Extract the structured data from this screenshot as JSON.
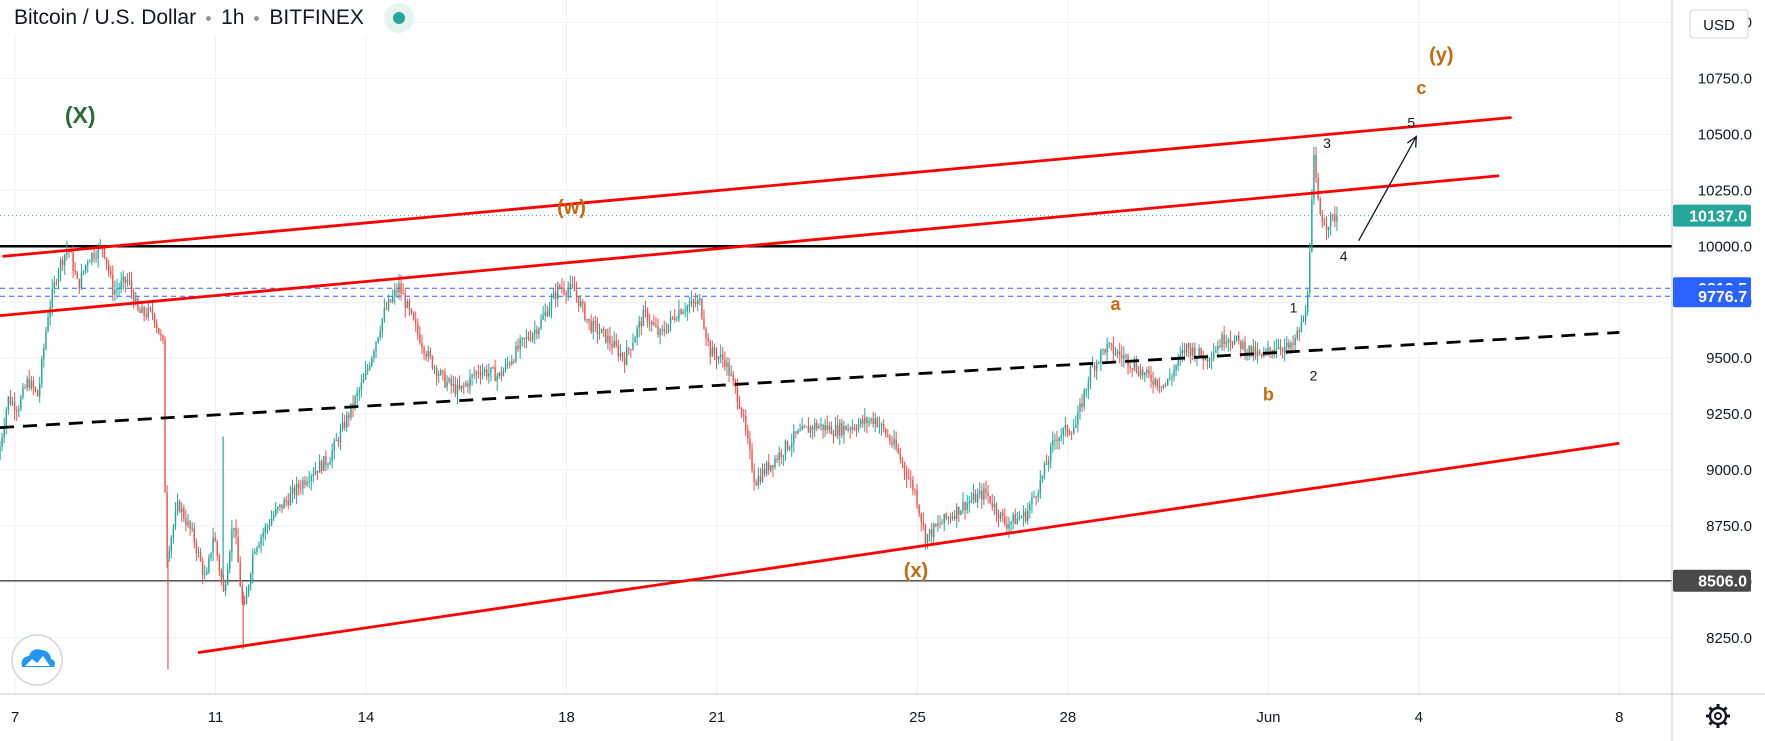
{
  "header": {
    "symbol": "Bitcoin / U.S. Dollar",
    "interval": "1h",
    "exchange": "BITFINEX",
    "status_icon": "market-status-dot-icon"
  },
  "currency_label": "USD",
  "settings_icon": "gear-icon",
  "logo_icon": "cloud-logo-icon",
  "colors": {
    "up": "#26a69a",
    "down": "#ef5350",
    "channel": "#ff0000",
    "wave_orange": "#c46a0c",
    "wave_green": "#2e6b3a",
    "blue_level": "#2962ff",
    "black_level": "#000000",
    "gray_level": "#555555"
  },
  "chart_data": {
    "type": "candlestick",
    "title": "Bitcoin / U.S. Dollar · 1h · BITFINEX",
    "ylim": [
      8000,
      11100
    ],
    "y_ticks": [
      11000,
      10750,
      10500,
      10250,
      10000,
      9750,
      9500,
      9250,
      9000,
      8750,
      8500,
      8250
    ],
    "x_ticks": [
      {
        "day": 7,
        "label": "7"
      },
      {
        "day": 11,
        "label": "11"
      },
      {
        "day": 14,
        "label": "14"
      },
      {
        "day": 18,
        "label": "18"
      },
      {
        "day": 21,
        "label": "21"
      },
      {
        "day": 25,
        "label": "25"
      },
      {
        "day": 28,
        "label": "28"
      },
      {
        "day": 32,
        "label": "Jun"
      },
      {
        "day": 35,
        "label": "4"
      },
      {
        "day": 39,
        "label": "8"
      }
    ],
    "xlim": [
      6.7,
      40.05
    ],
    "price_path": [
      [
        6.7,
        9050
      ],
      [
        6.9,
        9320
      ],
      [
        7.1,
        9280
      ],
      [
        7.3,
        9400
      ],
      [
        7.5,
        9330
      ],
      [
        7.7,
        9700
      ],
      [
        7.9,
        9900
      ],
      [
        8.1,
        10000
      ],
      [
        8.3,
        9820
      ],
      [
        8.5,
        9950
      ],
      [
        8.8,
        10000
      ],
      [
        9.0,
        9800
      ],
      [
        9.3,
        9850
      ],
      [
        9.5,
        9700
      ],
      [
        9.8,
        9700
      ],
      [
        10.0,
        9550
      ],
      [
        10.05,
        8600
      ],
      [
        10.3,
        8850
      ],
      [
        10.6,
        8700
      ],
      [
        10.85,
        8500
      ],
      [
        11.0,
        8720
      ],
      [
        11.2,
        8450
      ],
      [
        11.4,
        8780
      ],
      [
        11.6,
        8350
      ],
      [
        11.8,
        8650
      ],
      [
        12.2,
        8800
      ],
      [
        12.6,
        8900
      ],
      [
        12.9,
        8980
      ],
      [
        13.3,
        9050
      ],
      [
        13.7,
        9250
      ],
      [
        14.0,
        9400
      ],
      [
        14.4,
        9700
      ],
      [
        14.7,
        9820
      ],
      [
        15.0,
        9650
      ],
      [
        15.3,
        9500
      ],
      [
        15.6,
        9400
      ],
      [
        15.9,
        9350
      ],
      [
        16.3,
        9450
      ],
      [
        16.7,
        9420
      ],
      [
        17.1,
        9550
      ],
      [
        17.5,
        9650
      ],
      [
        17.9,
        9820
      ],
      [
        18.2,
        9800
      ],
      [
        18.5,
        9650
      ],
      [
        18.8,
        9600
      ],
      [
        19.2,
        9500
      ],
      [
        19.6,
        9700
      ],
      [
        19.9,
        9600
      ],
      [
        20.3,
        9720
      ],
      [
        20.7,
        9750
      ],
      [
        20.9,
        9530
      ],
      [
        21.2,
        9490
      ],
      [
        21.5,
        9300
      ],
      [
        21.8,
        8950
      ],
      [
        22.2,
        9050
      ],
      [
        22.6,
        9150
      ],
      [
        23.0,
        9200
      ],
      [
        23.4,
        9180
      ],
      [
        23.8,
        9200
      ],
      [
        24.2,
        9230
      ],
      [
        24.6,
        9100
      ],
      [
        25.0,
        8900
      ],
      [
        25.2,
        8700
      ],
      [
        25.6,
        8780
      ],
      [
        26.0,
        8850
      ],
      [
        26.4,
        8900
      ],
      [
        26.8,
        8760
      ],
      [
        27.2,
        8800
      ],
      [
        27.5,
        8950
      ],
      [
        27.8,
        9150
      ],
      [
        28.2,
        9200
      ],
      [
        28.5,
        9450
      ],
      [
        28.8,
        9550
      ],
      [
        29.2,
        9500
      ],
      [
        29.6,
        9420
      ],
      [
        30.0,
        9380
      ],
      [
        30.4,
        9550
      ],
      [
        30.8,
        9500
      ],
      [
        31.2,
        9600
      ],
      [
        31.5,
        9560
      ],
      [
        31.9,
        9500
      ],
      [
        32.2,
        9560
      ],
      [
        32.5,
        9540
      ],
      [
        32.8,
        9700
      ],
      [
        32.95,
        10380
      ],
      [
        33.05,
        10150
      ],
      [
        33.2,
        10100
      ],
      [
        33.4,
        10137
      ]
    ],
    "wicks": [
      {
        "day": 10.05,
        "low": 8110
      },
      {
        "day": 11.15,
        "high": 9150
      },
      {
        "day": 11.55,
        "low": 8200
      },
      {
        "day": 32.95,
        "high": 10400
      }
    ],
    "horizontal_levels": [
      {
        "price": 10000,
        "style": "solid",
        "color": "black"
      },
      {
        "price": 9812.5,
        "style": "dashed",
        "color": "blue"
      },
      {
        "price": 9776.7,
        "style": "dashed",
        "color": "blue"
      },
      {
        "price": 8506,
        "style": "solid",
        "color": "gray"
      }
    ],
    "trendlines": [
      {
        "name": "upper-channel",
        "color": "red",
        "points": [
          [
            6.75,
            9955
          ],
          [
            36.85,
            10575
          ]
        ]
      },
      {
        "name": "inner-channel",
        "color": "red",
        "points": [
          [
            6.7,
            9690
          ],
          [
            36.6,
            10315
          ]
        ]
      },
      {
        "name": "lower-channel",
        "color": "red",
        "points": [
          [
            10.65,
            8185
          ],
          [
            39.0,
            9120
          ]
        ]
      },
      {
        "name": "wave-b-line",
        "color": "black-dashed",
        "points": [
          [
            6.7,
            9190
          ],
          [
            39.0,
            9615
          ]
        ]
      }
    ],
    "projection_arrow": {
      "from": [
        33.8,
        10025
      ],
      "to": [
        34.95,
        10490
      ]
    },
    "price_labels": [
      {
        "text": "10137.0",
        "price": 10137,
        "bg": "#26a69a"
      },
      {
        "text": "9812.5",
        "price": 9812.5,
        "bg": "#2962ff"
      },
      {
        "text": "9776.7",
        "price": 9776.7,
        "bg": "#2962ff"
      },
      {
        "text": "8506.0",
        "price": 8506,
        "bg": "#4a4a4a"
      }
    ],
    "annotations": [
      {
        "text": "(X)",
        "day": 8.3,
        "price": 10550,
        "color": "green",
        "size": 23
      },
      {
        "text": "(w)",
        "day": 18.1,
        "price": 10145,
        "color": "orange",
        "size": 20
      },
      {
        "text": "(x)",
        "day": 24.97,
        "price": 8523,
        "color": "orange",
        "size": 20
      },
      {
        "text": "(y)",
        "day": 35.45,
        "price": 10825,
        "color": "orange",
        "size": 20
      },
      {
        "text": "a",
        "day": 28.95,
        "price": 9715,
        "color": "orange",
        "size": 18
      },
      {
        "text": "b",
        "day": 32.0,
        "price": 9310,
        "color": "orange",
        "size": 18
      },
      {
        "text": "c",
        "day": 35.05,
        "price": 10680,
        "color": "orange",
        "size": 18
      },
      {
        "text": "1",
        "day": 32.5,
        "price": 9703,
        "color": "black",
        "size": 14
      },
      {
        "text": "2",
        "day": 32.9,
        "price": 9400,
        "color": "black",
        "size": 14
      },
      {
        "text": "3",
        "day": 33.17,
        "price": 10439,
        "color": "black",
        "size": 14
      },
      {
        "text": "4",
        "day": 33.5,
        "price": 9935,
        "color": "black",
        "size": 14
      },
      {
        "text": "5",
        "day": 34.85,
        "price": 10531,
        "color": "black",
        "size": 14
      }
    ]
  }
}
